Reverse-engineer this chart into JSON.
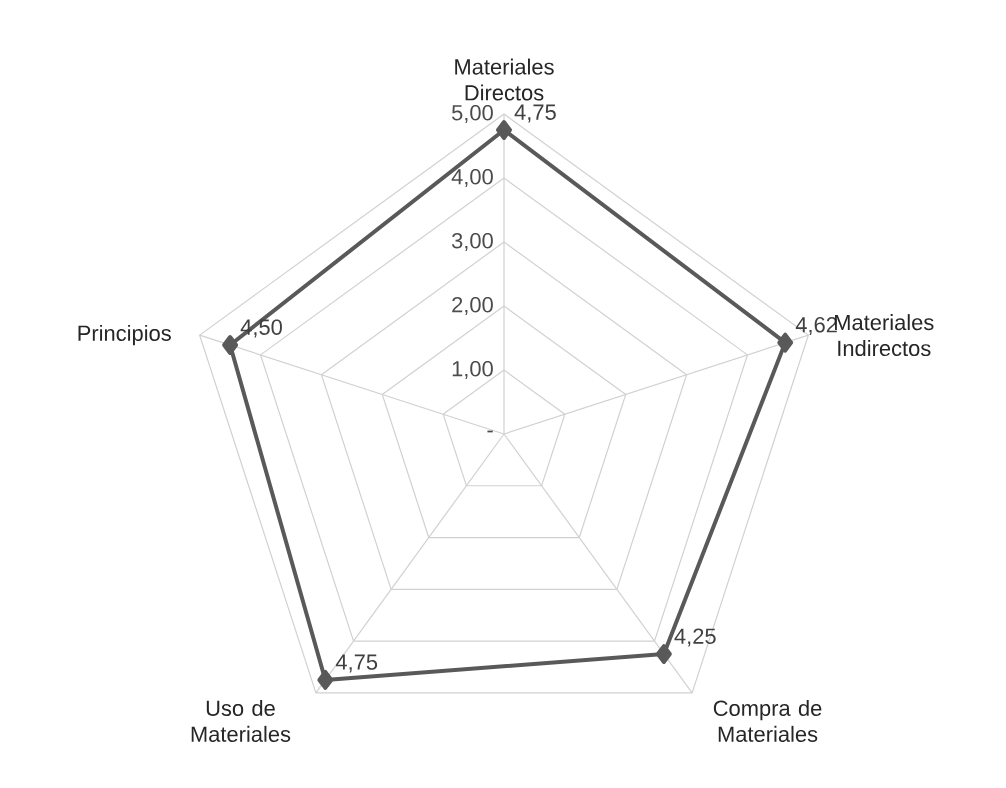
{
  "chart_data": {
    "type": "radar",
    "categories": [
      "Materiales Directos",
      "Materiales Indirectos",
      "Compra de Materiales",
      "Uso de Materiales",
      "Principios"
    ],
    "series": [
      {
        "color": "#595959",
        "values": [
          4.75,
          4.62,
          4.25,
          4.75,
          4.5
        ],
        "value_labels": [
          "4,75",
          "4,62",
          "4,25",
          "4,75",
          "4,50"
        ]
      }
    ],
    "ylim": [
      0,
      5
    ],
    "yticks": [
      {
        "value": 0,
        "label": "-"
      },
      {
        "value": 1,
        "label": "1,00"
      },
      {
        "value": 2,
        "label": "2,00"
      },
      {
        "value": 3,
        "label": "3,00"
      },
      {
        "value": 4,
        "label": "4,00"
      },
      {
        "value": 5,
        "label": "5,00"
      }
    ],
    "grid": true,
    "marker": "diamond"
  }
}
